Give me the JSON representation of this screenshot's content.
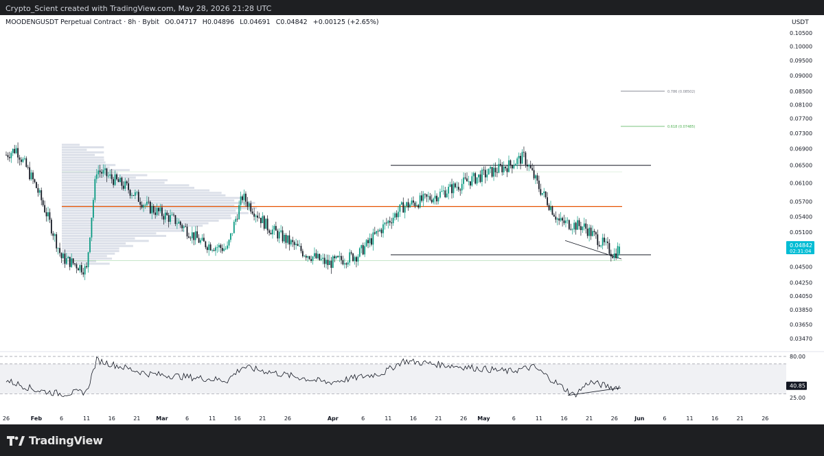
{
  "header": {
    "created_by": "Crypto_Scient created with TradingView.com, May 28, 2026 21:28 UTC"
  },
  "symbol": {
    "title": "MOODENGUSDT Perpetual Contract · 8h · Bybit",
    "open": "O0.04717",
    "high": "H0.04896",
    "low": "L0.04691",
    "close": "C0.04842",
    "change": "+0.00125 (+2.65%)",
    "currency": "USDT"
  },
  "price_badge": {
    "price": "0.04842",
    "countdown": "02:31:04",
    "color": "#00bcd4"
  },
  "rsi_badge": {
    "value": "40.85"
  },
  "footer": {
    "logo_text": "TradingView"
  },
  "colors": {
    "up": "#089981",
    "down": "#131722",
    "poc_line": "#e65100",
    "volume_profile": "#d0d6e2",
    "support_line": "#4caf50",
    "fib_786": "#787b86",
    "fib_618": "#4caf50",
    "rsi_line": "#131722"
  },
  "chart_data": [
    {
      "type": "candlestick",
      "timeframe": "8h",
      "y_axis_ticks": [
        "0.10500",
        "0.10000",
        "0.09500",
        "0.09000",
        "0.08500",
        "0.08100",
        "0.07700",
        "0.07300",
        "0.06900",
        "0.06500",
        "0.06100",
        "0.05700",
        "0.05400",
        "0.05100",
        "0.04800",
        "0.04500",
        "0.04250",
        "0.04050",
        "0.03850",
        "0.03650",
        "0.03470"
      ],
      "x_axis_ticks": [
        "26",
        "Feb",
        "6",
        "11",
        "16",
        "21",
        "Mar",
        "6",
        "11",
        "16",
        "21",
        "26",
        "Apr",
        "6",
        "11",
        "16",
        "21",
        "26",
        "May",
        "6",
        "11",
        "16",
        "21",
        "26",
        "Jun",
        "6",
        "11",
        "16",
        "21",
        "26"
      ],
      "last_price": 0.04842,
      "price_path_keypoints": [
        {
          "date": "Jan 26",
          "close": 0.0675
        },
        {
          "date": "Jan 28",
          "close": 0.069
        },
        {
          "date": "Feb 1",
          "close": 0.06
        },
        {
          "date": "Feb 6",
          "close": 0.0465
        },
        {
          "date": "Feb 11",
          "close": 0.0445
        },
        {
          "date": "Feb 13",
          "close": 0.064
        },
        {
          "date": "Feb 19",
          "close": 0.06
        },
        {
          "date": "Feb 23",
          "close": 0.056
        },
        {
          "date": "Mar 1",
          "close": 0.053
        },
        {
          "date": "Mar 6",
          "close": 0.049
        },
        {
          "date": "Mar 11",
          "close": 0.048
        },
        {
          "date": "Mar 14",
          "close": 0.058
        },
        {
          "date": "Mar 19",
          "close": 0.052
        },
        {
          "date": "Mar 26",
          "close": 0.0475
        },
        {
          "date": "Mar 31",
          "close": 0.0455
        },
        {
          "date": "Apr 6",
          "close": 0.047
        },
        {
          "date": "Apr 11",
          "close": 0.052
        },
        {
          "date": "Apr 15",
          "close": 0.056
        },
        {
          "date": "Apr 21",
          "close": 0.058
        },
        {
          "date": "Apr 27",
          "close": 0.061
        },
        {
          "date": "May 6",
          "close": 0.065
        },
        {
          "date": "May 9",
          "close": 0.067
        },
        {
          "date": "May 12",
          "close": 0.06
        },
        {
          "date": "May 16",
          "close": 0.053
        },
        {
          "date": "May 21",
          "close": 0.052
        },
        {
          "date": "May 27",
          "close": 0.047
        },
        {
          "date": "May 28",
          "close": 0.04842
        }
      ],
      "drawings": {
        "fib_levels": [
          {
            "label": "0.786 (0.08502)",
            "price": 0.08502
          },
          {
            "label": "0.618 (0.07485)",
            "price": 0.07485
          }
        ],
        "range_top": 0.065,
        "range_bottom": 0.047,
        "poc_level": 0.056
      }
    },
    {
      "type": "line",
      "name": "RSI",
      "y_axis_ticks": [
        "80.00",
        "25.00"
      ],
      "current_value": 40.85,
      "keypoints": [
        {
          "date": "Jan 26",
          "value": 48
        },
        {
          "date": "Feb 1",
          "value": 35
        },
        {
          "date": "Feb 6",
          "value": 30
        },
        {
          "date": "Feb 11",
          "value": 33
        },
        {
          "date": "Feb 13",
          "value": 75
        },
        {
          "date": "Feb 23",
          "value": 57
        },
        {
          "date": "Mar 11",
          "value": 48
        },
        {
          "date": "Mar 14",
          "value": 66
        },
        {
          "date": "Mar 31",
          "value": 45
        },
        {
          "date": "Apr 11",
          "value": 58
        },
        {
          "date": "Apr 15",
          "value": 74
        },
        {
          "date": "May 6",
          "value": 60
        },
        {
          "date": "May 11",
          "value": 66
        },
        {
          "date": "May 16",
          "value": 42
        },
        {
          "date": "May 19",
          "value": 28
        },
        {
          "date": "May 22",
          "value": 46
        },
        {
          "date": "May 27",
          "value": 38
        },
        {
          "date": "May 28",
          "value": 40.85
        }
      ]
    }
  ]
}
